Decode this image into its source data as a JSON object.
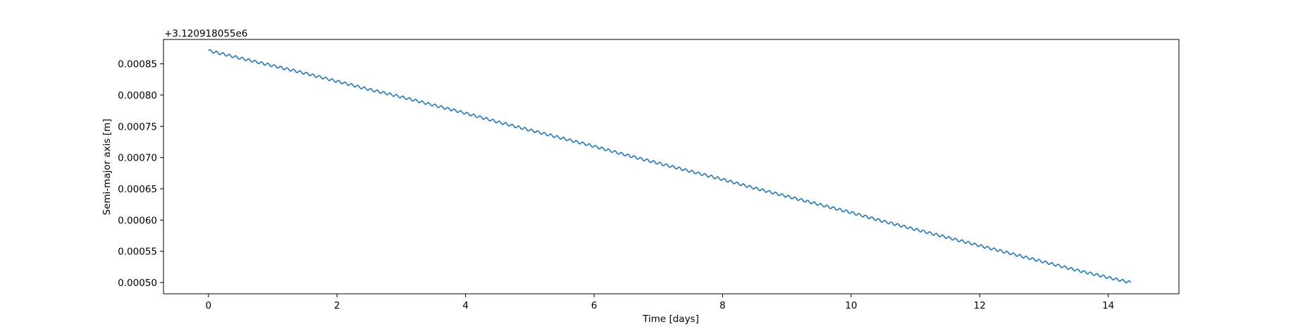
{
  "chart_data": {
    "type": "line",
    "xlabel": "Time [days]",
    "ylabel": "Semi-major axis [m]",
    "y_offset_text": "+3.120918055e6",
    "xlim": [
      -0.7,
      15.1
    ],
    "ylim": [
      0.000482,
      0.000889
    ],
    "x_ticks": [
      0,
      2,
      4,
      6,
      8,
      10,
      12,
      14
    ],
    "x_tick_labels": [
      "0",
      "2",
      "4",
      "6",
      "8",
      "10",
      "12",
      "14"
    ],
    "y_ticks": [
      0.0005,
      0.00055,
      0.0006,
      0.00065,
      0.0007,
      0.00075,
      0.0008,
      0.00085
    ],
    "y_tick_labels": [
      "0.00050",
      "0.00055",
      "0.00060",
      "0.00065",
      "0.00070",
      "0.00075",
      "0.00080",
      "0.00085"
    ],
    "grid": false,
    "series": [
      {
        "color": "#1f77b4",
        "x": [
          0,
          0.5,
          1,
          1.5,
          2,
          2.5,
          3,
          3.5,
          4,
          4.5,
          5,
          5.5,
          6,
          6.5,
          7,
          7.5,
          8,
          8.5,
          9,
          9.5,
          10,
          10.5,
          11,
          11.5,
          12,
          12.5,
          13,
          13.5,
          14,
          14.35
        ],
        "y": [
          0.000871,
          0.000859,
          0.000847,
          0.000835,
          0.000822,
          0.000809,
          0.000797,
          0.000784,
          0.000771,
          0.000757,
          0.000744,
          0.000731,
          0.000718,
          0.000704,
          0.000691,
          0.000678,
          0.000665,
          0.000651,
          0.000638,
          0.000625,
          0.000612,
          0.000598,
          0.000585,
          0.000572,
          0.000559,
          0.000546,
          0.000533,
          0.00052,
          0.000508,
          0.0005
        ],
        "oscillation_period_days": 0.1,
        "oscillation_amplitude": 2e-06
      }
    ]
  }
}
